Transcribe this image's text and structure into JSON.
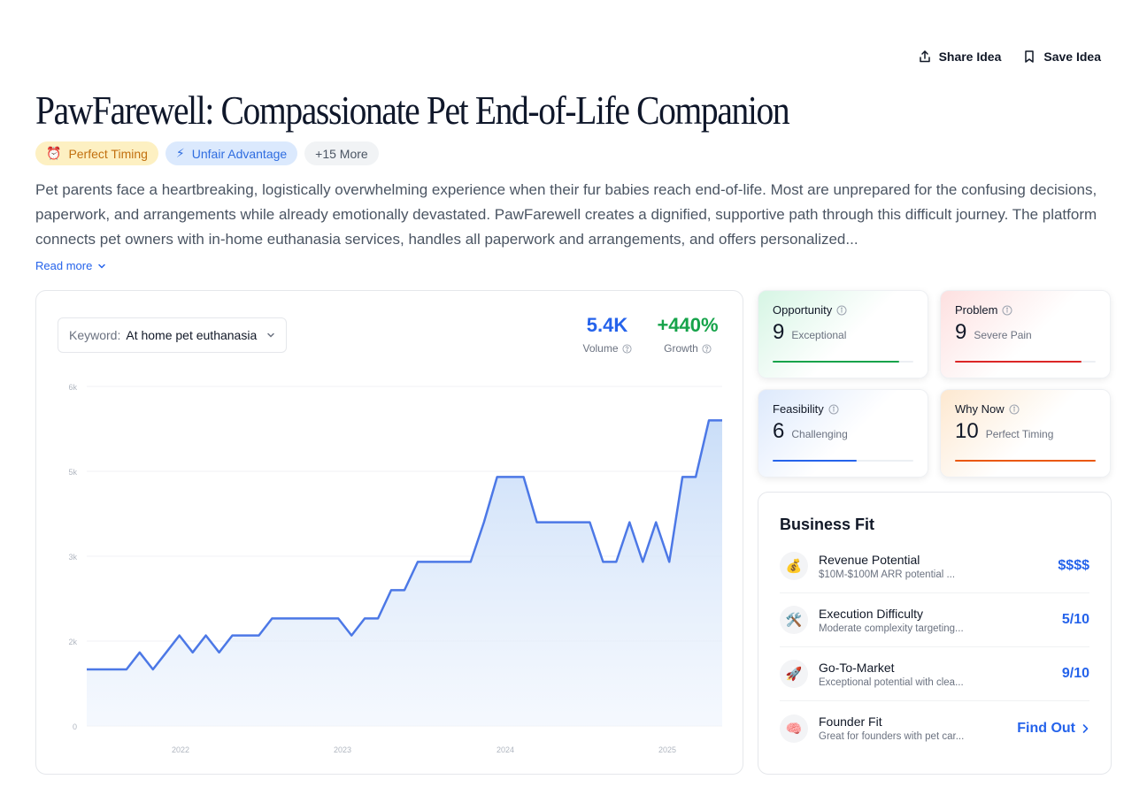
{
  "header": {
    "share_label": "Share Idea",
    "save_label": "Save Idea",
    "title": "PawFarewell: Compassionate Pet End-of-Life Companion"
  },
  "tags": [
    {
      "icon": "⏰",
      "label": "Perfect Timing"
    },
    {
      "icon": "⚡",
      "label": "Unfair Advantage"
    },
    {
      "label": "+15 More"
    }
  ],
  "description": {
    "text": "Pet parents face a heartbreaking, logistically overwhelming experience when their fur babies reach end-of-life. Most are unprepared for the confusing decisions, paperwork, and arrangements while already emotionally devastated. PawFarewell creates a dignified, supportive path through this difficult journey. The platform connects pet owners with in-home euthanasia services, handles all paperwork and arrangements, and offers personalized...",
    "read_more": "Read more"
  },
  "keyword": {
    "label": "Keyword:",
    "value": "At home pet euthanasia"
  },
  "stats": {
    "volume": {
      "value": "5.4K",
      "label": "Volume"
    },
    "growth": {
      "value": "+440%",
      "label": "Growth"
    }
  },
  "chart_data": {
    "type": "area",
    "title": "",
    "xlabel": "",
    "ylabel": "",
    "x_ticks": [
      "2022",
      "2023",
      "2024",
      "2025"
    ],
    "y_ticks": [
      "0",
      "2k",
      "3k",
      "5k",
      "6k"
    ],
    "ylim": [
      0,
      6000
    ],
    "grid": true,
    "color": "#4c78e6",
    "series": [
      {
        "x": [
          "2021-06",
          "2021-07",
          "2021-08",
          "2021-09",
          "2021-10",
          "2021-11",
          "2021-12",
          "2022-01",
          "2022-02",
          "2022-03",
          "2022-04",
          "2022-05",
          "2022-06",
          "2022-07",
          "2022-08",
          "2022-09",
          "2022-10",
          "2022-11",
          "2022-12",
          "2023-01",
          "2023-02",
          "2023-03",
          "2023-04",
          "2023-05",
          "2023-06",
          "2023-07",
          "2023-08",
          "2023-09",
          "2023-10",
          "2023-11",
          "2023-12",
          "2024-01",
          "2024-02",
          "2024-03",
          "2024-04",
          "2024-05",
          "2024-06",
          "2024-07",
          "2024-08",
          "2024-09",
          "2024-10",
          "2024-11",
          "2024-12",
          "2025-01",
          "2025-02",
          "2025-03",
          "2025-04",
          "2025-05",
          "2025-06"
        ],
        "values": [
          1000,
          1000,
          1000,
          1000,
          1300,
          1000,
          1300,
          1600,
          1300,
          1600,
          1300,
          1600,
          1600,
          1600,
          1900,
          1900,
          1900,
          1900,
          1900,
          1900,
          1600,
          1900,
          1900,
          2400,
          2400,
          2900,
          2900,
          2900,
          2900,
          2900,
          3600,
          4400,
          4400,
          4400,
          3600,
          3600,
          3600,
          3600,
          3600,
          2900,
          2900,
          3600,
          2900,
          3600,
          2900,
          4400,
          4400,
          5400,
          5400
        ]
      }
    ]
  },
  "metrics": [
    {
      "title": "Opportunity",
      "score": "9",
      "text": "Exceptional",
      "fill": 0.9,
      "color": "#16a34a"
    },
    {
      "title": "Problem",
      "score": "9",
      "text": "Severe Pain",
      "fill": 0.9,
      "color": "#dc2626"
    },
    {
      "title": "Feasibility",
      "score": "6",
      "text": "Challenging",
      "fill": 0.6,
      "color": "#2563eb"
    },
    {
      "title": "Why Now",
      "score": "10",
      "text": "Perfect Timing",
      "fill": 1.0,
      "color": "#ea580c"
    }
  ],
  "business_fit": {
    "title": "Business Fit",
    "rows": [
      {
        "icon": "💰",
        "name": "Revenue Potential",
        "desc": "$10M-$100M ARR potential ...",
        "value": "$$$$"
      },
      {
        "icon": "🛠️",
        "name": "Execution Difficulty",
        "desc": "Moderate complexity targeting...",
        "value": "5/10"
      },
      {
        "icon": "🚀",
        "name": "Go-To-Market",
        "desc": "Exceptional potential with clea...",
        "value": "9/10"
      },
      {
        "icon": "🧠",
        "name": "Founder Fit",
        "desc": "Great for founders with pet car...",
        "value": "Find Out"
      }
    ]
  }
}
